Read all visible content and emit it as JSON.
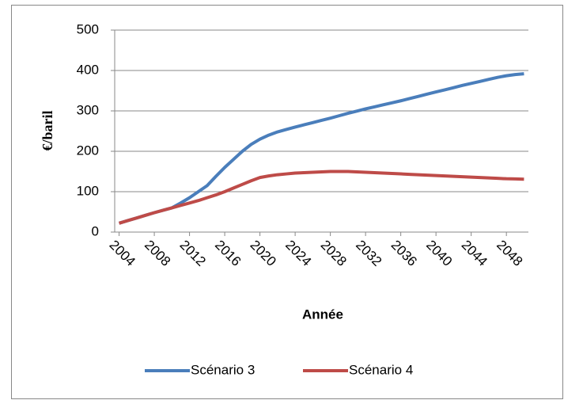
{
  "chart_data": {
    "type": "line",
    "ylabel": "€/baril",
    "xlabel": "Année",
    "x": [
      2004,
      2005,
      2006,
      2007,
      2008,
      2009,
      2010,
      2011,
      2012,
      2013,
      2014,
      2015,
      2016,
      2017,
      2018,
      2019,
      2020,
      2021,
      2022,
      2023,
      2024,
      2025,
      2026,
      2027,
      2028,
      2029,
      2030,
      2031,
      2032,
      2033,
      2034,
      2035,
      2036,
      2037,
      2038,
      2039,
      2040,
      2041,
      2042,
      2043,
      2044,
      2045,
      2046,
      2047,
      2048,
      2049,
      2050
    ],
    "xlim": [
      2003.5,
      2050.5
    ],
    "xticks": [
      2004,
      2008,
      2012,
      2016,
      2020,
      2024,
      2028,
      2032,
      2036,
      2040,
      2044,
      2048
    ],
    "ylim": [
      0,
      500
    ],
    "yticks": [
      0,
      100,
      200,
      300,
      400,
      500
    ],
    "grid": true,
    "legend": "bottom",
    "series": [
      {
        "name": "Scénario 3",
        "color": "#4a7ebb",
        "values": [
          22,
          28.5,
          35,
          41.5,
          48,
          54,
          60,
          72,
          85,
          100,
          115,
          138,
          160,
          180,
          200,
          217,
          230,
          240,
          248,
          254,
          260,
          265.5,
          271,
          276.5,
          282,
          288,
          294,
          299.5,
          305,
          310,
          315,
          320,
          325,
          330.5,
          336,
          341.5,
          347,
          352,
          357.5,
          363,
          368,
          373,
          378,
          383,
          387,
          390,
          392
        ]
      },
      {
        "name": "Scénario 4",
        "color": "#be4b48",
        "values": [
          22,
          28.5,
          35,
          41.5,
          48,
          54,
          60,
          66,
          72,
          78,
          85,
          92,
          100,
          109,
          118,
          127,
          135,
          139,
          142,
          144,
          146,
          147,
          148,
          149,
          150,
          150,
          150,
          149,
          148,
          147,
          146,
          145,
          144,
          143,
          142,
          141,
          140,
          139,
          138,
          137,
          136,
          135,
          134,
          133,
          132,
          131.5,
          131
        ]
      }
    ]
  }
}
